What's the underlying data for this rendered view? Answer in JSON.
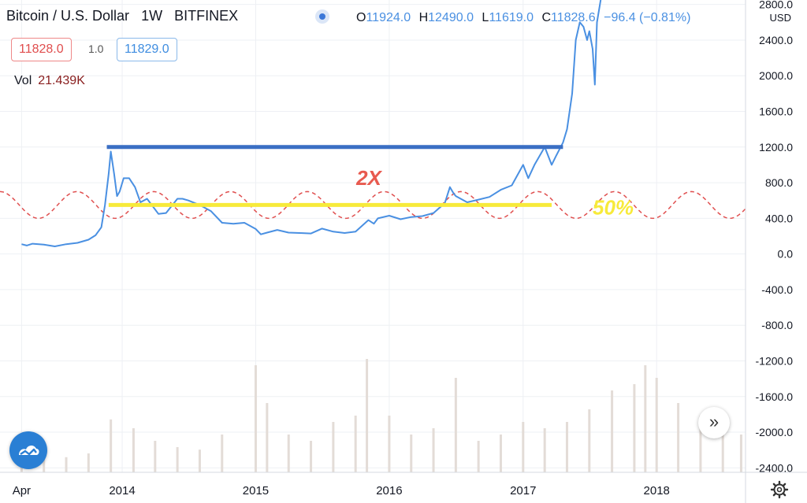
{
  "header": {
    "symbol": "Bitcoin / U.S. Dollar",
    "interval": "1W",
    "exchange": "BITFINEX",
    "ohlc": {
      "o_label": "O",
      "o": "11924.0",
      "h_label": "H",
      "h": "12490.0",
      "l_label": "L",
      "l": "11619.0",
      "c_label": "C",
      "c": "11828.6",
      "change": "−96.4 (−0.81%)"
    },
    "bid": "11828.0",
    "spread": "1.0",
    "ask": "11829.0",
    "vol_label": "Vol",
    "vol_value": "21.439K"
  },
  "icons": [
    "tradingview-logo-icon",
    "scroll-to-latest-icon",
    "settings-gear-icon",
    "symbol-status-icon"
  ],
  "colors": {
    "price": "#4a90e2",
    "resistance": "#3a6fc4",
    "support": "#f7ea3a",
    "cycle": "#e05050",
    "annotation_2x": "#e85a4f",
    "annotation_50": "#f7ea3a",
    "volume": "#e3dcd7"
  },
  "chart_data": {
    "type": "line",
    "currency": "USD",
    "ylim": [
      -2450,
      2850
    ],
    "yticks": [
      2800,
      2400,
      2000,
      1600,
      1200,
      800,
      400,
      0,
      -400,
      -800,
      -1200,
      -1600,
      -2000,
      -2400
    ],
    "ytick_labels": [
      "2800.0",
      "2400.0",
      "2000.0",
      "1600.0",
      "1200.0",
      "800.0",
      "400.0",
      "0.0",
      "-400.0",
      "-800.0",
      "-1200.0",
      "-1600.0",
      "-2000.0",
      "-2400.0"
    ],
    "xlim": [
      "2013-02-01",
      "2018-09-01"
    ],
    "xticks": [
      "2013-04-01",
      "2014-01-01",
      "2015-01-01",
      "2016-01-01",
      "2017-01-01",
      "2018-01-01"
    ],
    "xtick_labels": [
      "Apr",
      "2014",
      "2015",
      "2016",
      "2017",
      "2018"
    ],
    "series": [
      {
        "values": [
          [
            "2013-04-01",
            110
          ],
          [
            "2013-04-15",
            95
          ],
          [
            "2013-05-01",
            115
          ],
          [
            "2013-06-01",
            105
          ],
          [
            "2013-07-01",
            85
          ],
          [
            "2013-08-01",
            110
          ],
          [
            "2013-09-01",
            125
          ],
          [
            "2013-10-01",
            160
          ],
          [
            "2013-10-20",
            210
          ],
          [
            "2013-11-05",
            300
          ],
          [
            "2013-11-15",
            550
          ],
          [
            "2013-11-25",
            900
          ],
          [
            "2013-12-01",
            1150
          ],
          [
            "2013-12-10",
            900
          ],
          [
            "2013-12-18",
            650
          ],
          [
            "2013-12-25",
            700
          ],
          [
            "2014-01-05",
            850
          ],
          [
            "2014-01-20",
            850
          ],
          [
            "2014-02-05",
            750
          ],
          [
            "2014-02-20",
            580
          ],
          [
            "2014-03-10",
            620
          ],
          [
            "2014-04-10",
            450
          ],
          [
            "2014-05-01",
            460
          ],
          [
            "2014-06-01",
            620
          ],
          [
            "2014-06-15",
            620
          ],
          [
            "2014-07-01",
            600
          ],
          [
            "2014-08-01",
            550
          ],
          [
            "2014-09-01",
            480
          ],
          [
            "2014-10-01",
            350
          ],
          [
            "2014-11-01",
            340
          ],
          [
            "2014-12-01",
            350
          ],
          [
            "2015-01-01",
            280
          ],
          [
            "2015-01-15",
            220
          ],
          [
            "2015-02-01",
            240
          ],
          [
            "2015-03-01",
            270
          ],
          [
            "2015-04-01",
            240
          ],
          [
            "2015-05-01",
            235
          ],
          [
            "2015-06-01",
            230
          ],
          [
            "2015-07-01",
            285
          ],
          [
            "2015-08-01",
            250
          ],
          [
            "2015-09-01",
            235
          ],
          [
            "2015-10-01",
            250
          ],
          [
            "2015-11-05",
            380
          ],
          [
            "2015-11-20",
            340
          ],
          [
            "2015-12-01",
            400
          ],
          [
            "2016-01-01",
            430
          ],
          [
            "2016-02-01",
            390
          ],
          [
            "2016-03-01",
            415
          ],
          [
            "2016-04-01",
            425
          ],
          [
            "2016-05-01",
            460
          ],
          [
            "2016-06-01",
            570
          ],
          [
            "2016-06-15",
            750
          ],
          [
            "2016-06-25",
            680
          ],
          [
            "2016-07-01",
            650
          ],
          [
            "2016-08-01",
            580
          ],
          [
            "2016-09-01",
            610
          ],
          [
            "2016-10-01",
            640
          ],
          [
            "2016-11-01",
            720
          ],
          [
            "2016-12-01",
            770
          ],
          [
            "2017-01-01",
            1000
          ],
          [
            "2017-01-15",
            850
          ],
          [
            "2017-02-01",
            1000
          ],
          [
            "2017-03-01",
            1200
          ],
          [
            "2017-03-20",
            1000
          ],
          [
            "2017-04-01",
            1100
          ],
          [
            "2017-04-20",
            1250
          ],
          [
            "2017-05-01",
            1400
          ],
          [
            "2017-05-15",
            1800
          ],
          [
            "2017-05-25",
            2400
          ],
          [
            "2017-06-05",
            2600
          ],
          [
            "2017-06-15",
            2550
          ],
          [
            "2017-06-25",
            2400
          ],
          [
            "2017-07-01",
            2500
          ],
          [
            "2017-07-10",
            2300
          ],
          [
            "2017-07-16",
            1900
          ],
          [
            "2017-07-22",
            2600
          ],
          [
            "2017-08-01",
            2850
          ]
        ]
      }
    ],
    "volume": [
      [
        "2013-04-01",
        0.22
      ],
      [
        "2013-06-01",
        0.18
      ],
      [
        "2013-08-01",
        0.12
      ],
      [
        "2013-10-01",
        0.15
      ],
      [
        "2013-12-01",
        0.42
      ],
      [
        "2014-02-01",
        0.35
      ],
      [
        "2014-04-01",
        0.25
      ],
      [
        "2014-06-01",
        0.2
      ],
      [
        "2014-08-01",
        0.18
      ],
      [
        "2014-10-01",
        0.3
      ],
      [
        "2015-01-01",
        0.85
      ],
      [
        "2015-02-01",
        0.55
      ],
      [
        "2015-04-01",
        0.3
      ],
      [
        "2015-06-01",
        0.25
      ],
      [
        "2015-08-01",
        0.4
      ],
      [
        "2015-10-01",
        0.45
      ],
      [
        "2015-11-01",
        0.9
      ],
      [
        "2016-01-01",
        0.45
      ],
      [
        "2016-03-01",
        0.3
      ],
      [
        "2016-05-01",
        0.35
      ],
      [
        "2016-07-01",
        0.75
      ],
      [
        "2016-09-01",
        0.25
      ],
      [
        "2016-11-01",
        0.3
      ],
      [
        "2017-01-01",
        0.4
      ],
      [
        "2017-03-01",
        0.35
      ],
      [
        "2017-05-01",
        0.4
      ],
      [
        "2017-07-01",
        0.5
      ],
      [
        "2017-09-01",
        0.65
      ],
      [
        "2017-11-01",
        0.7
      ],
      [
        "2017-12-01",
        0.85
      ],
      [
        "2018-01-01",
        0.75
      ],
      [
        "2018-03-01",
        0.55
      ],
      [
        "2018-05-01",
        0.45
      ],
      [
        "2018-07-01",
        0.35
      ],
      [
        "2018-08-20",
        0.3
      ]
    ],
    "annotations": [
      {
        "label": "2X",
        "kind": "resistance",
        "y": 1200,
        "x_from": "2013-11-20",
        "x_to": "2017-04-20"
      },
      {
        "label": "50%",
        "kind": "support",
        "y": 550,
        "x_from": "2013-11-25",
        "x_to": "2017-03-20"
      }
    ],
    "cycle": {
      "center": 550,
      "amplitude": 150,
      "period_days": 210,
      "x_from": "2013-02-01",
      "x_to": "2018-09-01"
    }
  }
}
